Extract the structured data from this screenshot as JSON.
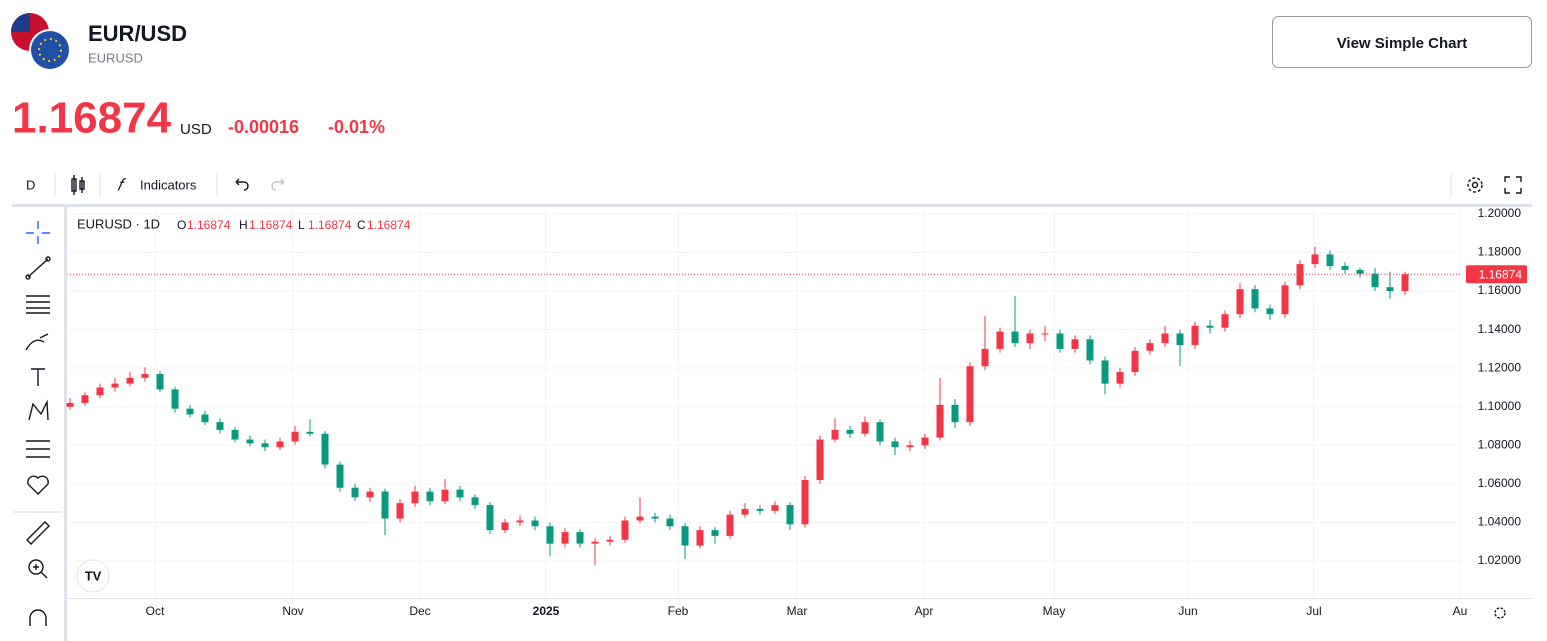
{
  "header": {
    "symbol": "EUR/USD",
    "ticker": "EURUSD",
    "price": "1.16874",
    "currency": "USD",
    "change": "-0.00016",
    "change_pct": "-0.01%",
    "button": "View Simple Chart"
  },
  "toolbar": {
    "interval": "D",
    "indicators": "Indicators"
  },
  "chart_data": {
    "type": "candlestick",
    "legend_title": "EURUSD · 1D",
    "legend": [
      {
        "label": "O",
        "value": 1.16874
      },
      {
        "label": "H",
        "value": 1.16874
      },
      {
        "label": "L",
        "value": 1.16874
      },
      {
        "label": "C",
        "value": 1.16874
      }
    ],
    "last_price": 1.16874,
    "up_color": "#f23645",
    "down_color": "#089981",
    "ylim": [
      1.0008,
      1.2036
    ],
    "yticks": [
      {
        "value": 1.02,
        "label": "1.02000"
      },
      {
        "value": 1.04,
        "label": "1.04000"
      },
      {
        "value": 1.06,
        "label": "1.06000"
      },
      {
        "value": 1.08,
        "label": "1.08000"
      },
      {
        "value": 1.1,
        "label": "1.10000"
      },
      {
        "value": 1.12,
        "label": "1.12000"
      },
      {
        "value": 1.14,
        "label": "1.14000"
      },
      {
        "value": 1.16,
        "label": "1.16000"
      },
      {
        "value": 1.18,
        "label": "1.18000"
      },
      {
        "value": 1.2,
        "label": "1.20000"
      }
    ],
    "x_labels": [
      "Oct",
      "Nov",
      "Dec",
      "2025",
      "Feb",
      "Mar",
      "Apr",
      "May",
      "Jun",
      "Jul",
      "Au"
    ],
    "grid": true,
    "candles": [
      [
        1.1,
        1.1045,
        1.0985,
        1.102
      ],
      [
        1.102,
        1.1075,
        1.1005,
        1.106
      ],
      [
        1.106,
        1.112,
        1.1045,
        1.11
      ],
      [
        1.11,
        1.115,
        1.108,
        1.112
      ],
      [
        1.112,
        1.118,
        1.1105,
        1.115
      ],
      [
        1.115,
        1.1205,
        1.113,
        1.117
      ],
      [
        1.117,
        1.1185,
        1.1075,
        1.109
      ],
      [
        1.109,
        1.1105,
        1.097,
        1.099
      ],
      [
        1.099,
        1.101,
        1.0945,
        1.096
      ],
      [
        1.096,
        1.098,
        1.0905,
        1.092
      ],
      [
        1.092,
        1.094,
        1.086,
        1.088
      ],
      [
        1.088,
        1.0895,
        1.0815,
        1.083
      ],
      [
        1.083,
        1.085,
        1.0795,
        1.081
      ],
      [
        1.081,
        1.083,
        1.077,
        1.079
      ],
      [
        1.079,
        1.084,
        1.0775,
        1.082
      ],
      [
        1.082,
        1.09,
        1.0805,
        1.087
      ],
      [
        1.087,
        1.0935,
        1.0845,
        1.086
      ],
      [
        1.086,
        1.0875,
        1.068,
        1.07
      ],
      [
        1.07,
        1.0715,
        1.056,
        1.058
      ],
      [
        1.058,
        1.06,
        1.051,
        1.053
      ],
      [
        1.053,
        1.058,
        1.0505,
        1.056
      ],
      [
        1.056,
        1.0575,
        1.0335,
        1.042
      ],
      [
        1.042,
        1.052,
        1.04,
        1.05
      ],
      [
        1.05,
        1.059,
        1.048,
        1.056
      ],
      [
        1.056,
        1.058,
        1.049,
        1.051
      ],
      [
        1.051,
        1.0625,
        1.0495,
        1.057
      ],
      [
        1.057,
        1.059,
        1.051,
        1.053
      ],
      [
        1.053,
        1.0545,
        1.047,
        1.049
      ],
      [
        1.049,
        1.0505,
        1.034,
        1.036
      ],
      [
        1.036,
        1.042,
        1.0345,
        1.04
      ],
      [
        1.04,
        1.0435,
        1.038,
        1.041
      ],
      [
        1.041,
        1.043,
        1.036,
        1.038
      ],
      [
        1.038,
        1.04,
        1.0225,
        1.029
      ],
      [
        1.029,
        1.037,
        1.027,
        1.035
      ],
      [
        1.035,
        1.0365,
        1.027,
        1.029
      ],
      [
        1.029,
        1.032,
        1.018,
        1.03
      ],
      [
        1.03,
        1.033,
        1.028,
        1.031
      ],
      [
        1.031,
        1.043,
        1.0295,
        1.041
      ],
      [
        1.041,
        1.053,
        1.0395,
        1.043
      ],
      [
        1.043,
        1.045,
        1.04,
        1.042
      ],
      [
        1.042,
        1.044,
        1.036,
        1.038
      ],
      [
        1.038,
        1.0395,
        1.021,
        1.028
      ],
      [
        1.028,
        1.038,
        1.0265,
        1.036
      ],
      [
        1.036,
        1.0375,
        1.029,
        1.033
      ],
      [
        1.033,
        1.046,
        1.0315,
        1.044
      ],
      [
        1.044,
        1.05,
        1.0425,
        1.047
      ],
      [
        1.047,
        1.049,
        1.044,
        1.046
      ],
      [
        1.046,
        1.051,
        1.0445,
        1.049
      ],
      [
        1.049,
        1.0505,
        1.036,
        1.039
      ],
      [
        1.039,
        1.064,
        1.0375,
        1.062
      ],
      [
        1.062,
        1.085,
        1.06,
        1.083
      ],
      [
        1.083,
        1.094,
        1.0815,
        1.088
      ],
      [
        1.088,
        1.09,
        1.084,
        1.086
      ],
      [
        1.086,
        1.095,
        1.0845,
        1.092
      ],
      [
        1.092,
        1.0935,
        1.08,
        1.082
      ],
      [
        1.082,
        1.084,
        1.075,
        1.079
      ],
      [
        1.079,
        1.0825,
        1.077,
        1.08
      ],
      [
        1.08,
        1.086,
        1.078,
        1.084
      ],
      [
        1.084,
        1.115,
        1.0825,
        1.101
      ],
      [
        1.101,
        1.104,
        1.089,
        1.092
      ],
      [
        1.092,
        1.123,
        1.09,
        1.121
      ],
      [
        1.121,
        1.147,
        1.119,
        1.13
      ],
      [
        1.13,
        1.141,
        1.128,
        1.139
      ],
      [
        1.139,
        1.1575,
        1.131,
        1.133
      ],
      [
        1.133,
        1.14,
        1.13,
        1.138
      ],
      [
        1.138,
        1.142,
        1.134,
        1.138
      ],
      [
        1.138,
        1.14,
        1.128,
        1.13
      ],
      [
        1.13,
        1.137,
        1.128,
        1.135
      ],
      [
        1.135,
        1.137,
        1.122,
        1.124
      ],
      [
        1.124,
        1.126,
        1.1065,
        1.112
      ],
      [
        1.112,
        1.12,
        1.11,
        1.118
      ],
      [
        1.118,
        1.131,
        1.116,
        1.129
      ],
      [
        1.129,
        1.135,
        1.127,
        1.133
      ],
      [
        1.133,
        1.142,
        1.131,
        1.138
      ],
      [
        1.138,
        1.14,
        1.121,
        1.132
      ],
      [
        1.132,
        1.144,
        1.13,
        1.142
      ],
      [
        1.142,
        1.145,
        1.138,
        1.141
      ],
      [
        1.141,
        1.15,
        1.139,
        1.148
      ],
      [
        1.148,
        1.164,
        1.146,
        1.161
      ],
      [
        1.161,
        1.163,
        1.149,
        1.151
      ],
      [
        1.151,
        1.153,
        1.145,
        1.148
      ],
      [
        1.148,
        1.165,
        1.146,
        1.163
      ],
      [
        1.163,
        1.176,
        1.161,
        1.174
      ],
      [
        1.174,
        1.183,
        1.172,
        1.179
      ],
      [
        1.179,
        1.181,
        1.171,
        1.173
      ],
      [
        1.173,
        1.175,
        1.169,
        1.171
      ],
      [
        1.171,
        1.172,
        1.167,
        1.169
      ],
      [
        1.169,
        1.172,
        1.16,
        1.162
      ],
      [
        1.162,
        1.17,
        1.156,
        1.16
      ],
      [
        1.16,
        1.17,
        1.158,
        1.16874
      ]
    ]
  }
}
